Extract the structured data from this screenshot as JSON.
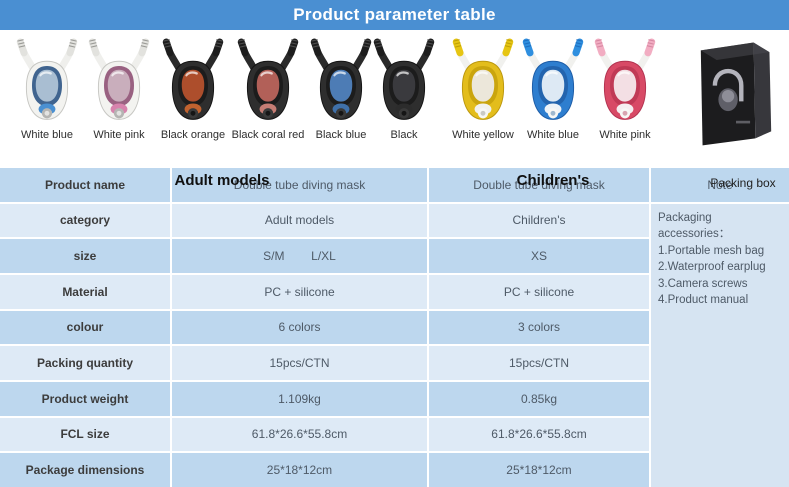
{
  "header": {
    "title": "Product parameter table",
    "bg_color": "#4a8fd2"
  },
  "showcase": {
    "group_labels": {
      "adult": "Adult models",
      "children": "Children's"
    },
    "packing_box_label": "Packing box",
    "box_colors": {
      "front": "#1c1c1e",
      "side": "#37373c",
      "top": "#4a4a50",
      "art": "#cfcfd8"
    },
    "masks": [
      {
        "label": "White blue",
        "group": "adult",
        "palette": {
          "tube": "#efefec",
          "tip": "#e2e2de",
          "ribs": "#9a9a96",
          "body": "#f3f3f0",
          "bodyStroke": "#c6c6c2",
          "bezel": "#40648f",
          "window": "#a9bed2",
          "chin": "#4a90d2",
          "valve": "#b5b5b3",
          "valveInner": "#e3e3e1"
        }
      },
      {
        "label": "White pink",
        "group": "adult",
        "palette": {
          "tube": "#efefec",
          "tip": "#e2e2de",
          "ribs": "#9a9a96",
          "body": "#f3f3f0",
          "bodyStroke": "#c6c6c2",
          "bezel": "#996181",
          "window": "#c9aebc",
          "chin": "#d783ad",
          "valve": "#b5b5b3",
          "valveInner": "#e3e3e1"
        }
      },
      {
        "label": "Black orange",
        "group": "adult",
        "palette": {
          "tube": "#2a2a2a",
          "tip": "#1d1d1d",
          "ribs": "#4d4d4d",
          "body": "#2e2e2e",
          "bodyStroke": "#141414",
          "bezel": "#1c1c1c",
          "window": "#ad4e2c",
          "chin": "#c0622f",
          "valve": "#3a3a3a",
          "valveInner": "#151515"
        }
      },
      {
        "label": "Black coral red",
        "group": "adult",
        "palette": {
          "tube": "#2a2a2a",
          "tip": "#1d1d1d",
          "ribs": "#4d4d4d",
          "body": "#2e2e2e",
          "bodyStroke": "#141414",
          "bezel": "#1c1c1c",
          "window": "#b26058",
          "chin": "#c67d74",
          "valve": "#3a3a3a",
          "valveInner": "#151515"
        }
      },
      {
        "label": "Black blue",
        "group": "adult",
        "palette": {
          "tube": "#2a2a2a",
          "tip": "#1d1d1d",
          "ribs": "#4d4d4d",
          "body": "#2e2e2e",
          "bodyStroke": "#141414",
          "bezel": "#1c1c1c",
          "window": "#4d7cb5",
          "chin": "#3f70a9",
          "valve": "#3a3a3a",
          "valveInner": "#151515"
        }
      },
      {
        "label": "Black",
        "group": "adult",
        "palette": {
          "tube": "#2a2a2a",
          "tip": "#1d1d1d",
          "ribs": "#4d4d4d",
          "body": "#2e2e2e",
          "bodyStroke": "#141414",
          "bezel": "#1c1c1c",
          "window": "#3a3a3e",
          "chin": "#2c2c2c",
          "valve": "#3a3a3a",
          "valveInner": "#151515"
        }
      },
      {
        "label": "White yellow",
        "group": "children",
        "palette": {
          "tube": "#f1f1ee",
          "tip": "#e6c513",
          "ribs": "#bfa007",
          "body": "#e3bd1c",
          "bodyStroke": "#bb970e",
          "bezel": "#caa50e",
          "window": "#ece7da",
          "chin": "#f2f2ef",
          "valve": "#f7f7f5",
          "valveInner": "#c9c9c5"
        }
      },
      {
        "label": "White blue",
        "group": "children",
        "palette": {
          "tube": "#f1f1ee",
          "tip": "#2f8fdf",
          "ribs": "#1f6fc0",
          "body": "#2e7ecf",
          "bodyStroke": "#1d5ca6",
          "bezel": "#2364ae",
          "window": "#dde9f4",
          "chin": "#eef3f8",
          "valve": "#f7f7f5",
          "valveInner": "#9fb8cf"
        }
      },
      {
        "label": "White pink",
        "group": "children",
        "palette": {
          "tube": "#f1f1ee",
          "tip": "#f2adc2",
          "ribs": "#d787a2",
          "body": "#d84a66",
          "bodyStroke": "#b23350",
          "bezel": "#c03a56",
          "window": "#f3dfe4",
          "chin": "#f5eff1",
          "valve": "#f7f7f5",
          "valveInner": "#d8a4b0"
        }
      }
    ]
  },
  "table": {
    "colors": {
      "row_dark": "#bdd7ee",
      "row_light": "#deeaf6",
      "note_bg": "#d6e4f2"
    },
    "note_header": "Note",
    "note_lines": [
      "Packaging accessories：",
      "1.Portable mesh bag",
      "2.Waterproof earplug",
      "3.Camera screws",
      "4.Product manual"
    ],
    "rows": [
      {
        "label": "Product name",
        "adult": "Double tube diving mask",
        "children": "Double tube diving mask"
      },
      {
        "label": "category",
        "adult": "Adult models",
        "children": "Children's"
      },
      {
        "label": "size",
        "adult": "S/M        L/XL",
        "children": "XS"
      },
      {
        "label": "Material",
        "adult": "PC + silicone",
        "children": "PC + silicone"
      },
      {
        "label": "colour",
        "adult": "6 colors",
        "children": "3 colors"
      },
      {
        "label": "Packing quantity",
        "adult": "15pcs/CTN",
        "children": "15pcs/CTN"
      },
      {
        "label": "Product weight",
        "adult": "1.109kg",
        "children": "0.85kg"
      },
      {
        "label": "FCL size",
        "adult": "61.8*26.6*55.8cm",
        "children": "61.8*26.6*55.8cm"
      },
      {
        "label": "Package dimensions",
        "adult": "25*18*12cm",
        "children": "25*18*12cm"
      }
    ]
  }
}
